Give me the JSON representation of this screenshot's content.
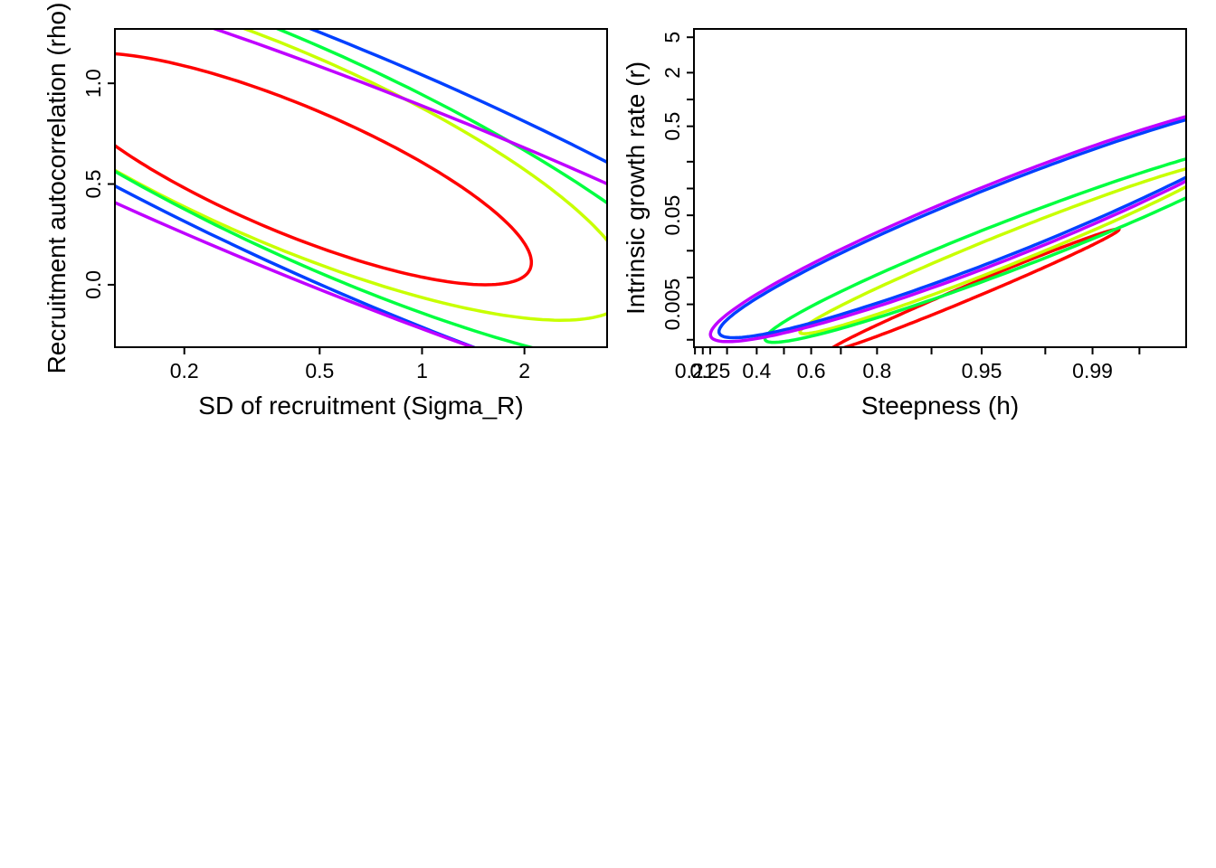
{
  "chart_data": [
    {
      "type": "line",
      "xlabel": "SD of recruitment (Sigma_R)",
      "ylabel": "Recruitment autocorrelation (rho)",
      "x_scale": "log",
      "xlim": [
        0.125,
        3.5
      ],
      "ylim": [
        -0.31,
        1.27
      ],
      "x_ticks": [
        {
          "value": 0.2,
          "label": "0.2"
        },
        {
          "value": 0.5,
          "label": "0.5"
        },
        {
          "value": 1,
          "label": "1"
        },
        {
          "value": 2,
          "label": "2"
        }
      ],
      "y_ticks": [
        {
          "value": 0.0,
          "label": "0.0"
        },
        {
          "value": 0.5,
          "label": "0.5"
        },
        {
          "value": 1.0,
          "label": "1.0"
        }
      ],
      "grid": false,
      "series": [
        {
          "color": "#ff0000",
          "ellipse": {
            "center": [
              0.36,
              0.56
            ],
            "semi_axes": [
              0.58,
              0.18
            ],
            "angle_deg": -35
          }
        },
        {
          "color": "#c8ff00",
          "ellipse": {
            "center": [
              0.34,
              0.63
            ],
            "semi_axes": [
              0.85,
              0.27
            ],
            "angle_deg": -36
          }
        },
        {
          "color": "#00ff40",
          "ellipse": {
            "center": [
              0.4,
              0.6
            ],
            "semi_axes": [
              1.05,
              0.29
            ],
            "angle_deg": -37
          }
        },
        {
          "color": "#0040ff",
          "ellipse": {
            "center": [
              0.53,
              0.52
            ],
            "semi_axes": [
              1.42,
              0.33
            ],
            "angle_deg": -35
          }
        },
        {
          "color": "#bf00ff",
          "ellipse": {
            "center": [
              0.52,
              0.47
            ],
            "semi_axes": [
              1.6,
              0.3
            ],
            "angle_deg": -32
          }
        }
      ]
    },
    {
      "type": "line",
      "xlabel": "Steepness (h)",
      "ylabel": "Intrinsic growth rate (r)",
      "x_scale": "logit",
      "y_scale": "log",
      "xlim": [
        0.2075,
        0.9975
      ],
      "ylim": [
        0.00165,
        6.2
      ],
      "x_ticks": [
        {
          "value": 0.21,
          "label": "0.21"
        },
        {
          "value": 0.25,
          "label": "0.25"
        },
        {
          "value": 0.4,
          "label": "0.4"
        },
        {
          "value": 0.6,
          "label": "0.6"
        },
        {
          "value": 0.8,
          "label": "0.8"
        },
        {
          "value": 0.95,
          "label": "0.95"
        },
        {
          "value": 0.99,
          "label": "0.99"
        }
      ],
      "x_minor_ticks": [
        0.23,
        0.3,
        0.5,
        0.7,
        0.9,
        0.98,
        0.995
      ],
      "y_ticks": [
        {
          "value": 0.005,
          "label": "0.005"
        },
        {
          "value": 0.05,
          "label": "0.05"
        },
        {
          "value": 0.5,
          "label": "0.5"
        },
        {
          "value": 2,
          "label": "2"
        },
        {
          "value": 5,
          "label": "5"
        }
      ],
      "y_minor_ticks": [
        0.002,
        0.01,
        0.02,
        0.1,
        0.2,
        1
      ],
      "grid": false,
      "series": [
        {
          "color": "#ff0000",
          "ellipse": {
            "center": [
              0.57,
              0.18
            ],
            "semi_axes": [
              0.35,
              0.02
            ],
            "angle_deg": 33
          }
        },
        {
          "color": "#c8ff00",
          "ellipse": {
            "center": [
              0.64,
              0.31
            ],
            "semi_axes": [
              0.5,
              0.045
            ],
            "angle_deg": 32
          }
        },
        {
          "color": "#00ff40",
          "ellipse": {
            "center": [
              0.66,
              0.33
            ],
            "semi_axes": [
              0.6,
              0.07
            ],
            "angle_deg": 31
          }
        },
        {
          "color": "#0040ff",
          "ellipse": {
            "center": [
              0.63,
              0.4
            ],
            "semi_axes": [
              0.68,
              0.1
            ],
            "angle_deg": 32
          }
        },
        {
          "color": "#bf00ff",
          "ellipse": {
            "center": [
              0.63,
              0.4
            ],
            "semi_axes": [
              0.7,
              0.11
            ],
            "angle_deg": 32
          }
        }
      ]
    }
  ]
}
